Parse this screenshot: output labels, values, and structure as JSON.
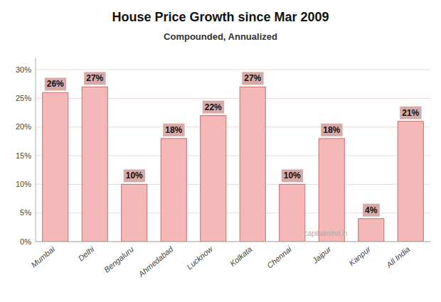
{
  "chart_data": {
    "type": "bar",
    "title": "House Price Growth since Mar 2009",
    "subtitle": "Compounded, Annualized",
    "categories": [
      "Mumbai",
      "Delhi",
      "Bengaluru",
      "Ahmedabad",
      "Lucknow",
      "Kolkata",
      "Chennai",
      "Jaipur",
      "Kanpur",
      "All India"
    ],
    "values": [
      26,
      27,
      10,
      18,
      22,
      27,
      10,
      18,
      4,
      21
    ],
    "value_labels": [
      "26%",
      "27%",
      "10%",
      "18%",
      "22%",
      "27%",
      "10%",
      "18%",
      "4%",
      "21%"
    ],
    "data_labels": true,
    "color": "#f5b8b8",
    "ylim": [
      0,
      32
    ],
    "yticks": [
      {
        "value": 0,
        "label": "0%"
      },
      {
        "value": 5,
        "label": "5%"
      },
      {
        "value": 10,
        "label": "10%"
      },
      {
        "value": 15,
        "label": "15%"
      },
      {
        "value": 20,
        "label": "20%"
      },
      {
        "value": 25,
        "label": "25%"
      },
      {
        "value": 30,
        "label": "30%"
      }
    ],
    "grid": true,
    "annotations": [
      "capitalmind.in"
    ]
  }
}
